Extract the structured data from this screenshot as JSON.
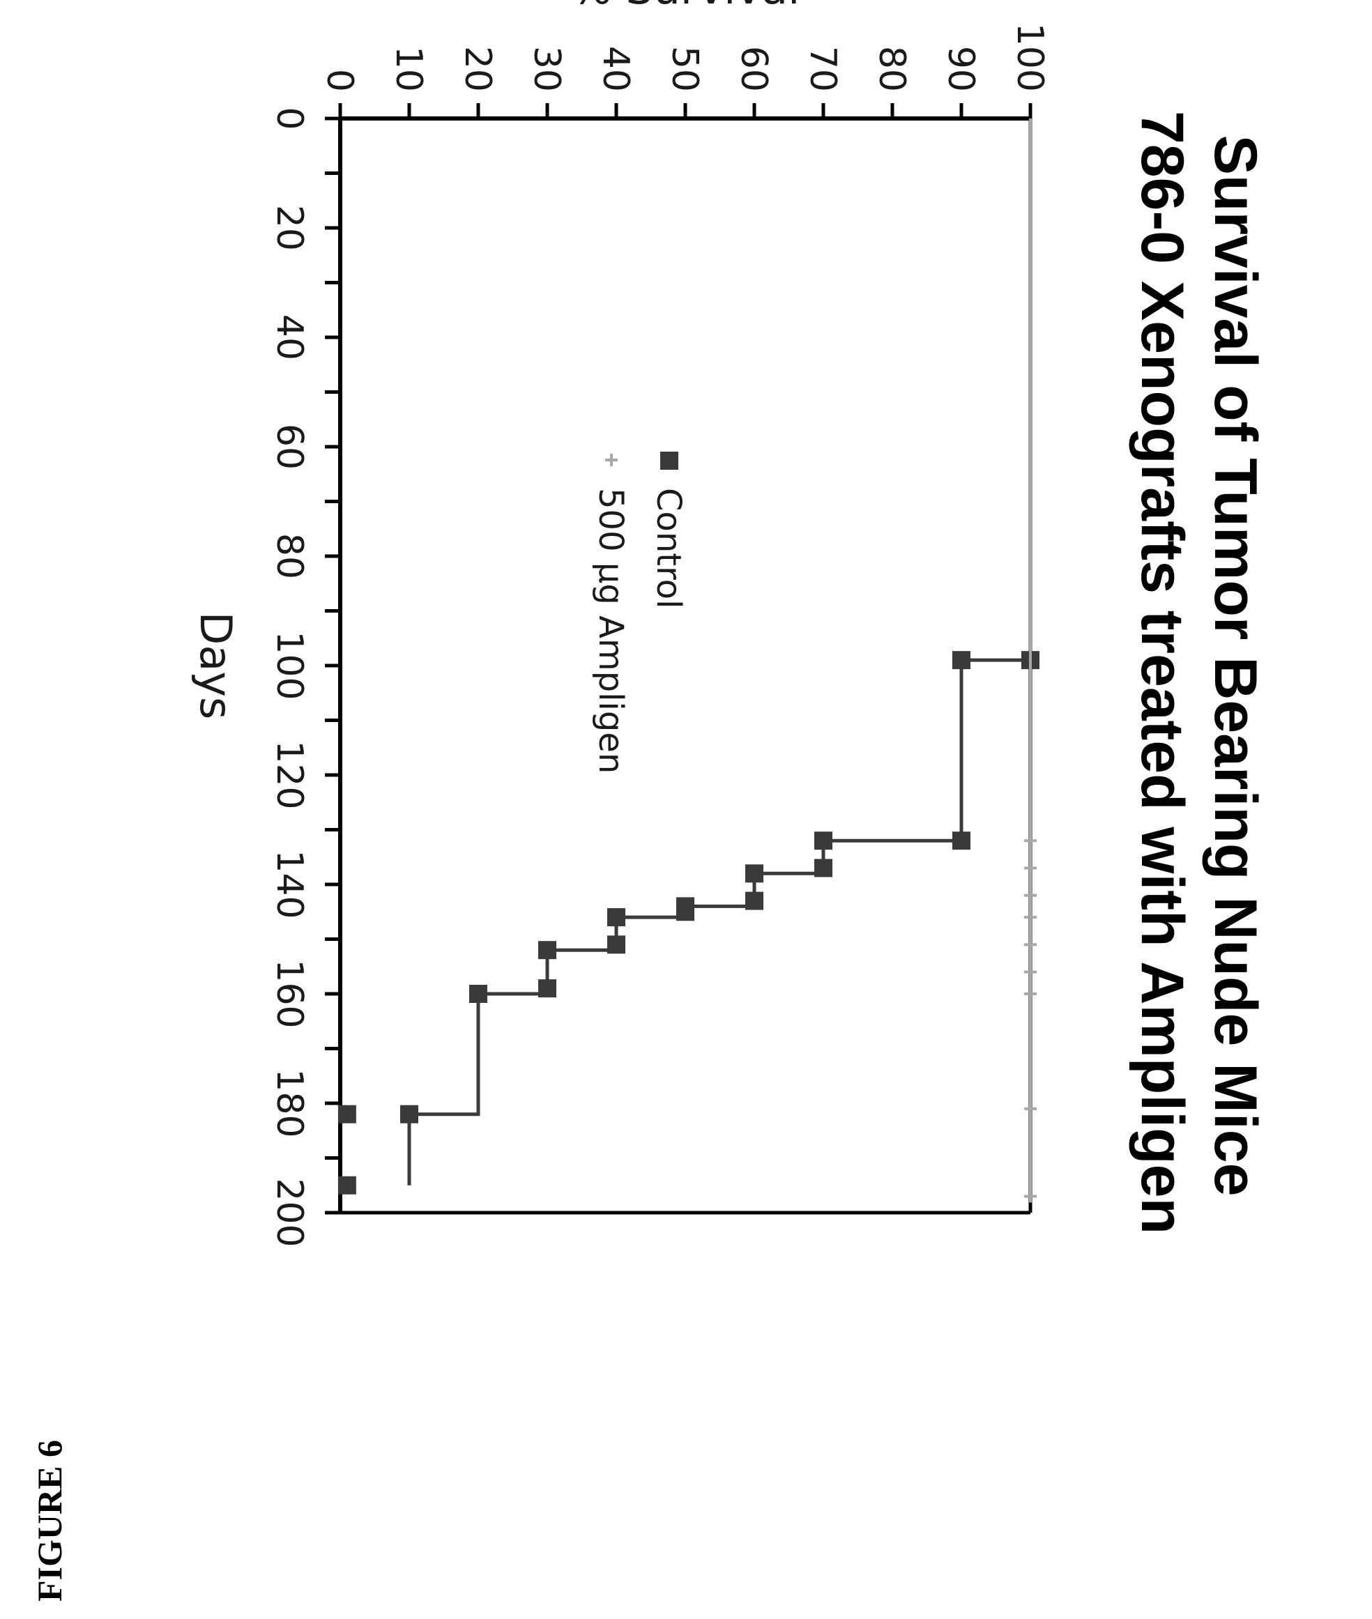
{
  "figure_label": "FIGURE 6",
  "chart_data": {
    "type": "line",
    "step": true,
    "title_lines": [
      "Survival of Tumor Bearing Nude Mice",
      "786-0 Xenografts treated with Ampligen"
    ],
    "xlabel": "Days",
    "ylabel": "% Survival",
    "xlim": [
      0,
      200
    ],
    "ylim": [
      0,
      100
    ],
    "x_ticks": [
      "0",
      "20",
      "40",
      "60",
      "80",
      "100",
      "120",
      "140",
      "160",
      "180",
      "200"
    ],
    "y_ticks": [
      "0",
      "10",
      "20",
      "30",
      "40",
      "50",
      "60",
      "70",
      "80",
      "90",
      "100"
    ],
    "grid": false,
    "legend_position": "middle",
    "series": [
      {
        "name": "Control",
        "color": "#3a3a3a",
        "marker": "square",
        "x": [
          0,
          99,
          99,
          132,
          132,
          138,
          138,
          144,
          144,
          146,
          146,
          152,
          152,
          160,
          160,
          182,
          182,
          195
        ],
        "y": [
          100,
          100,
          90,
          90,
          70,
          70,
          60,
          60,
          50,
          50,
          40,
          40,
          30,
          30,
          20,
          20,
          10,
          10
        ],
        "marker_x": [
          99,
          99,
          132,
          132,
          137,
          138,
          143,
          144,
          145,
          146,
          151,
          152,
          159,
          160,
          182,
          182,
          195
        ],
        "marker_y": [
          100,
          90,
          90,
          70,
          70,
          60,
          60,
          50,
          50,
          40,
          40,
          30,
          30,
          20,
          10,
          1,
          1
        ]
      },
      {
        "name": "500 µg Ampligen",
        "color": "#a8a8a8",
        "marker": "plus",
        "x": [
          0,
          197
        ],
        "y": [
          100,
          100
        ],
        "marker_x": [
          132,
          137,
          142,
          146,
          151,
          156,
          160,
          181,
          197
        ],
        "marker_y": [
          100,
          100,
          100,
          100,
          100,
          100,
          100,
          100,
          100
        ]
      }
    ]
  }
}
